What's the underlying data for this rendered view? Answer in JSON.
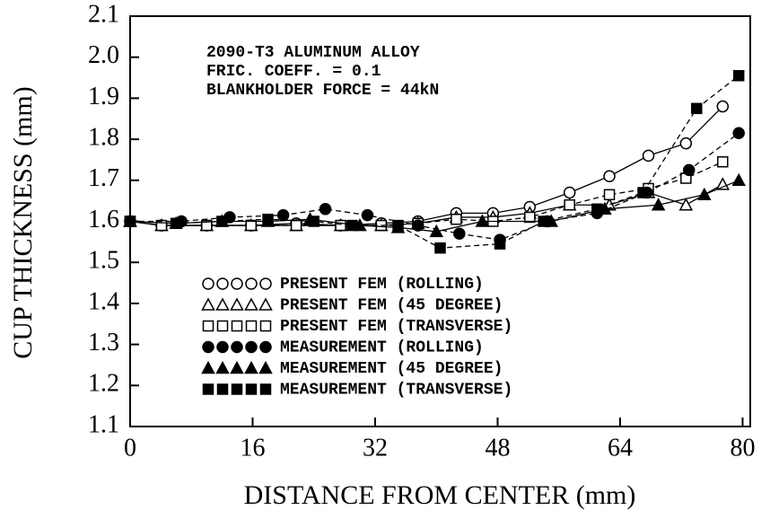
{
  "chart_data": {
    "type": "line",
    "annotations": [
      "2090-T3 ALUMINUM ALLOY",
      "FRIC. COEFF. = 0.1",
      "BLANKHOLDER FORCE = 44kN"
    ],
    "xlabel": "DISTANCE FROM CENTER (mm)",
    "ylabel": "CUP THICKNESS (mm)",
    "xlim": [
      0,
      81
    ],
    "xticks": [
      0,
      16,
      32,
      48,
      64,
      80
    ],
    "ylim": [
      1.1,
      2.1
    ],
    "yticks": [
      1.1,
      1.2,
      1.3,
      1.4,
      1.5,
      1.6,
      1.7,
      1.8,
      1.9,
      {
        "value": 2,
        "label": "2.0"
      },
      2.1
    ],
    "color": "#000000",
    "series": [
      {
        "name": "PRESENT FEM (ROLLING)",
        "marker": "circle",
        "filled": false,
        "dashed": false,
        "x": [
          0,
          4.1,
          10,
          15.8,
          21.7,
          27.5,
          32.8,
          37.6,
          42.6,
          47.4,
          52.2,
          57.4,
          62.6,
          67.7,
          72.6,
          77.4
        ],
        "values": [
          1.6,
          1.59,
          1.59,
          1.59,
          1.595,
          1.59,
          1.595,
          1.6,
          1.62,
          1.62,
          1.635,
          1.67,
          1.71,
          1.76,
          1.79,
          1.88
        ]
      },
      {
        "name": "PRESENT FEM (45 DEGREE)",
        "marker": "triangle",
        "filled": false,
        "dashed": false,
        "x": [
          0,
          4.1,
          10,
          15.8,
          21.7,
          27.5,
          32.8,
          37.6,
          42.6,
          47.4,
          52.2,
          57.4,
          62.6,
          67.7,
          72.6,
          77.4
        ],
        "values": [
          1.6,
          1.59,
          1.59,
          1.59,
          1.59,
          1.59,
          1.59,
          1.595,
          1.61,
          1.61,
          1.62,
          1.64,
          1.64,
          1.67,
          1.64,
          1.69
        ]
      },
      {
        "name": "PRESENT FEM (TRANSVERSE)",
        "marker": "square",
        "filled": false,
        "dashed": true,
        "x": [
          0,
          4.1,
          10,
          15.8,
          21.7,
          27.5,
          32.8,
          37.6,
          42.6,
          47.4,
          52.2,
          57.4,
          62.6,
          67.7,
          72.6,
          77.4
        ],
        "values": [
          1.6,
          1.59,
          1.59,
          1.59,
          1.59,
          1.59,
          1.59,
          1.595,
          1.605,
          1.6,
          1.61,
          1.64,
          1.665,
          1.68,
          1.705,
          1.745
        ]
      },
      {
        "name": "MEASUREMENT (ROLLING)",
        "marker": "circle",
        "filled": true,
        "dashed": true,
        "x": [
          0,
          6.7,
          13,
          20,
          25.5,
          31,
          37.6,
          43,
          48.3,
          54.5,
          61,
          67.5,
          73,
          79.5
        ],
        "values": [
          1.6,
          1.6,
          1.61,
          1.615,
          1.63,
          1.615,
          1.59,
          1.57,
          1.555,
          1.6,
          1.62,
          1.67,
          1.725,
          1.815
        ]
      },
      {
        "name": "MEASUREMENT (45 DEGREE)",
        "marker": "triangle",
        "filled": true,
        "dashed": false,
        "x": [
          0,
          6,
          12,
          18,
          23.5,
          30,
          35,
          40,
          46,
          55,
          62,
          69,
          75,
          79.5
        ],
        "values": [
          1.6,
          1.595,
          1.6,
          1.6,
          1.605,
          1.59,
          1.585,
          1.575,
          1.6,
          1.6,
          1.63,
          1.64,
          1.665,
          1.7
        ]
      },
      {
        "name": "MEASUREMENT (TRANSVERSE)",
        "marker": "square",
        "filled": true,
        "dashed": true,
        "x": [
          0,
          6,
          12,
          18,
          24,
          29,
          35,
          40.5,
          48.3,
          54,
          61,
          67,
          74,
          79.5
        ],
        "values": [
          1.6,
          1.595,
          1.6,
          1.605,
          1.6,
          1.59,
          1.59,
          1.535,
          1.545,
          1.6,
          1.63,
          1.67,
          1.875,
          1.955
        ]
      }
    ]
  }
}
